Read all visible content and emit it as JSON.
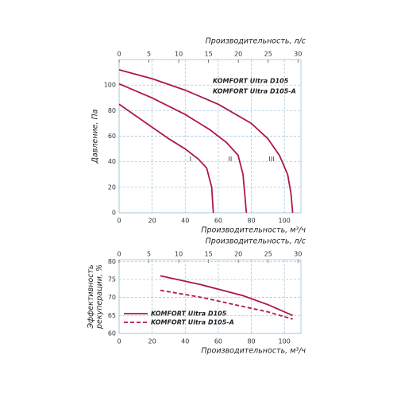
{
  "chart_data": [
    {
      "type": "line",
      "x_label": "Производительность, м³/ч",
      "x2_label": "Производительность, л/с",
      "y_label": "Давление, Па",
      "xlim": [
        0,
        110
      ],
      "xticks": [
        0,
        20,
        40,
        60,
        80,
        100
      ],
      "x2lim": [
        0,
        30.5
      ],
      "x2ticks": [
        0,
        5,
        10,
        15,
        20,
        25,
        30
      ],
      "ylim": [
        0,
        120
      ],
      "yticks": [
        0,
        20,
        40,
        60,
        80,
        100
      ],
      "grid": true,
      "annotations": [
        "KOMFORT Ultra D105",
        "KOMFORT Ultra D105-A"
      ],
      "series": [
        {
          "name": "I",
          "color": "#b0164a",
          "x": [
            0,
            10,
            20,
            30,
            40,
            48,
            53,
            56,
            57
          ],
          "values": [
            85,
            76,
            67,
            58,
            50,
            42,
            35,
            20,
            0
          ]
        },
        {
          "name": "II",
          "color": "#b0164a",
          "x": [
            0,
            20,
            40,
            55,
            65,
            72,
            75,
            76,
            77
          ],
          "values": [
            101,
            90,
            77,
            65,
            55,
            45,
            30,
            15,
            0
          ]
        },
        {
          "name": "III",
          "color": "#b0164a",
          "x": [
            0,
            20,
            40,
            60,
            80,
            90,
            97,
            102,
            104,
            105
          ],
          "values": [
            112,
            105,
            96,
            85,
            70,
            58,
            45,
            30,
            15,
            0
          ]
        }
      ]
    },
    {
      "type": "line",
      "x_label": "Производительность, м³/ч",
      "x2_label": "Производительность, л/с",
      "y_label": [
        "Эффективность",
        "рекуперации, %"
      ],
      "xlim": [
        0,
        110
      ],
      "xticks": [
        0,
        20,
        40,
        60,
        80,
        100
      ],
      "x2lim": [
        0,
        30.5
      ],
      "x2ticks": [
        0,
        5,
        10,
        15,
        20,
        25,
        30
      ],
      "ylim": [
        60,
        80.5
      ],
      "yticks": [
        60,
        65,
        70,
        75,
        80
      ],
      "grid": true,
      "legend": "lower-left",
      "series": [
        {
          "name": "KOMFORT Ultra D105",
          "color": "#b0164a",
          "line_style": "solid",
          "x": [
            25,
            50,
            75,
            90,
            105
          ],
          "values": [
            76,
            73.5,
            70.5,
            68,
            65
          ]
        },
        {
          "name": "KOMFORT Ultra D105-A",
          "color": "#b0164a",
          "line_style": "dashed",
          "x": [
            25,
            50,
            75,
            90,
            105
          ],
          "values": [
            72,
            70,
            67.5,
            66,
            64
          ]
        }
      ]
    }
  ]
}
